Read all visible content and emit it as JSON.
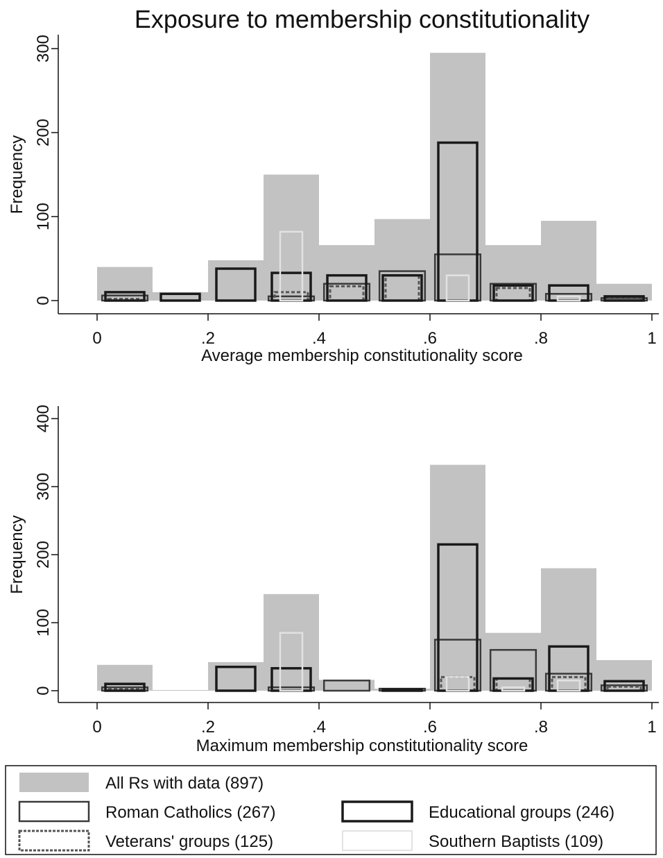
{
  "title": "Exposure to membership constitutionality",
  "colors": {
    "all": "#c2c2c2",
    "educational": "#1a1a1a",
    "roman_catholics": "#3a3a3a",
    "veterans": "#555555",
    "southern_baptists": "#e2e2e2"
  },
  "legend": {
    "all": "All Rs with data (897)",
    "roman_catholics": "Roman Catholics (267)",
    "educational": "Educational groups (246)",
    "veterans": "Veterans' groups (125)",
    "southern_baptists": "Southern Baptists (109)"
  },
  "chart_data": [
    {
      "type": "bar",
      "xlabel": "Average membership constitutionality score",
      "ylabel": "Frequency",
      "xlim": [
        0,
        1
      ],
      "ylim": [
        0,
        300
      ],
      "xticks": [
        "0",
        ".2",
        ".4",
        ".6",
        ".8",
        "1"
      ],
      "yticks": [
        "0",
        "100",
        "200",
        "300"
      ],
      "bins": [
        [
          0,
          0.1
        ],
        [
          0.1,
          0.2
        ],
        [
          0.2,
          0.3
        ],
        [
          0.3,
          0.4
        ],
        [
          0.4,
          0.5
        ],
        [
          0.5,
          0.6
        ],
        [
          0.6,
          0.7
        ],
        [
          0.7,
          0.8
        ],
        [
          0.8,
          0.9
        ],
        [
          0.9,
          1.0
        ]
      ],
      "series": [
        {
          "key": "all",
          "values": [
            40,
            10,
            48,
            150,
            66,
            97,
            295,
            66,
            95,
            20
          ]
        },
        {
          "key": "roman_catholics",
          "values": [
            6,
            0,
            0,
            5,
            20,
            35,
            55,
            20,
            8,
            3
          ]
        },
        {
          "key": "educational",
          "values": [
            10,
            8,
            38,
            33,
            30,
            30,
            188,
            18,
            18,
            5
          ]
        },
        {
          "key": "veterans",
          "values": [
            2,
            0,
            0,
            10,
            17,
            30,
            0,
            15,
            0,
            3
          ]
        },
        {
          "key": "southern_baptists",
          "values": [
            0,
            0,
            0,
            82,
            0,
            0,
            30,
            0,
            5,
            0
          ]
        }
      ]
    },
    {
      "type": "bar",
      "xlabel": "Maximum membership constitutionality score",
      "ylabel": "Frequency",
      "xlim": [
        0,
        1
      ],
      "ylim": [
        0,
        400
      ],
      "xticks": [
        "0",
        ".2",
        ".4",
        ".6",
        ".8",
        "1"
      ],
      "yticks": [
        "0",
        "100",
        "200",
        "300",
        "400"
      ],
      "bins": [
        [
          0,
          0.1
        ],
        [
          0.1,
          0.2
        ],
        [
          0.2,
          0.3
        ],
        [
          0.3,
          0.4
        ],
        [
          0.4,
          0.5
        ],
        [
          0.5,
          0.6
        ],
        [
          0.6,
          0.7
        ],
        [
          0.7,
          0.8
        ],
        [
          0.8,
          0.9
        ],
        [
          0.9,
          1.0
        ]
      ],
      "series": [
        {
          "key": "all",
          "values": [
            38,
            1,
            42,
            142,
            16,
            3,
            332,
            85,
            180,
            45
          ]
        },
        {
          "key": "roman_catholics",
          "values": [
            5,
            0,
            0,
            5,
            15,
            3,
            75,
            60,
            25,
            8
          ]
        },
        {
          "key": "educational",
          "values": [
            10,
            0,
            35,
            33,
            0,
            2,
            215,
            18,
            65,
            14
          ]
        },
        {
          "key": "veterans",
          "values": [
            3,
            0,
            0,
            0,
            0,
            0,
            20,
            18,
            20,
            6
          ]
        },
        {
          "key": "southern_baptists",
          "values": [
            0,
            0,
            0,
            85,
            0,
            0,
            20,
            5,
            15,
            0
          ]
        }
      ]
    }
  ]
}
